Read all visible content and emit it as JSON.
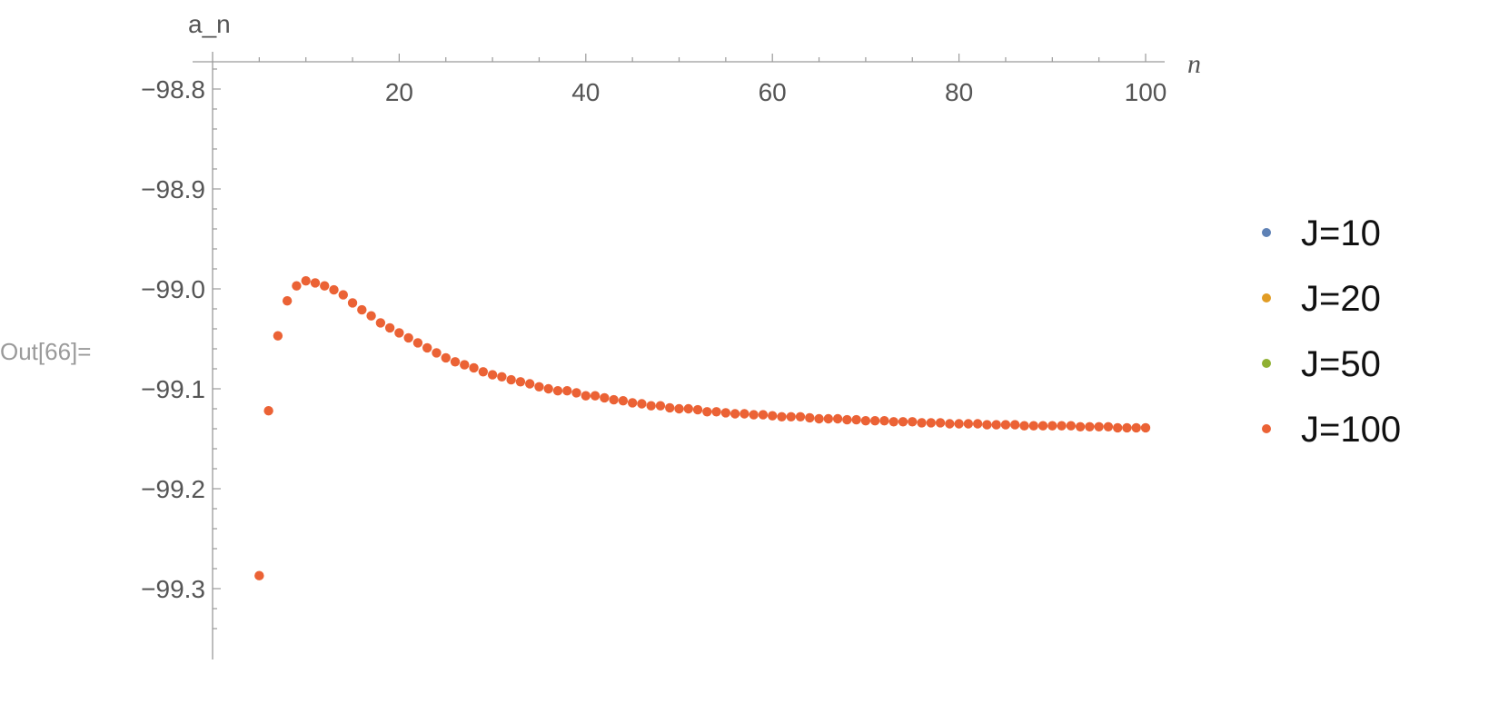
{
  "cell_label": "Out[66]=",
  "chart_data": {
    "type": "scatter",
    "xlabel": "n",
    "ylabel": "a_n",
    "xlim": [
      0,
      100
    ],
    "ylim": [
      -99.36,
      -98.77
    ],
    "x_ticks": [
      20,
      40,
      60,
      80,
      100
    ],
    "x_tick_labels": [
      "20",
      "40",
      "60",
      "80",
      "100"
    ],
    "y_ticks": [
      -98.8,
      -98.9,
      -99.0,
      -99.1,
      -99.2,
      -99.3
    ],
    "y_tick_labels": [
      "−98.8",
      "−98.9",
      "−99.0",
      "−99.1",
      "−99.2",
      "−99.3"
    ],
    "grid": false,
    "legend_position": "right",
    "series": [
      {
        "name": "J=10",
        "color": "#5e81b5",
        "x": [],
        "y": []
      },
      {
        "name": "J=20",
        "color": "#e19c24",
        "x": [],
        "y": []
      },
      {
        "name": "J=50",
        "color": "#8fb032",
        "x": [],
        "y": []
      },
      {
        "name": "J=100",
        "color": "#eb6235",
        "x": [
          5,
          6,
          7,
          8,
          9,
          10,
          11,
          12,
          13,
          14,
          15,
          16,
          17,
          18,
          19,
          20,
          21,
          22,
          23,
          24,
          25,
          26,
          27,
          28,
          29,
          30,
          31,
          32,
          33,
          34,
          35,
          36,
          37,
          38,
          39,
          40,
          41,
          42,
          43,
          44,
          45,
          46,
          47,
          48,
          49,
          50,
          51,
          52,
          53,
          54,
          55,
          56,
          57,
          58,
          59,
          60,
          61,
          62,
          63,
          64,
          65,
          66,
          67,
          68,
          69,
          70,
          71,
          72,
          73,
          74,
          75,
          76,
          77,
          78,
          79,
          80,
          81,
          82,
          83,
          84,
          85,
          86,
          87,
          88,
          89,
          90,
          91,
          92,
          93,
          94,
          95,
          96,
          97,
          98,
          99,
          100
        ],
        "y": [
          -99.287,
          -99.122,
          -99.047,
          -99.012,
          -98.997,
          -98.992,
          -98.994,
          -98.997,
          -99.001,
          -99.006,
          -99.014,
          -99.021,
          -99.027,
          -99.034,
          -99.039,
          -99.044,
          -99.049,
          -99.054,
          -99.059,
          -99.064,
          -99.069,
          -99.073,
          -99.076,
          -99.079,
          -99.083,
          -99.086,
          -99.088,
          -99.091,
          -99.093,
          -99.095,
          -99.098,
          -99.1,
          -99.102,
          -99.102,
          -99.104,
          -99.107,
          -99.107,
          -99.109,
          -99.111,
          -99.112,
          -99.114,
          -99.115,
          -99.117,
          -99.117,
          -99.119,
          -99.12,
          -99.12,
          -99.121,
          -99.123,
          -99.123,
          -99.124,
          -99.125,
          -99.125,
          -99.126,
          -99.126,
          -99.127,
          -99.128,
          -99.128,
          -99.128,
          -99.129,
          -99.13,
          -99.13,
          -99.13,
          -99.131,
          -99.131,
          -99.132,
          -99.132,
          -99.132,
          -99.133,
          -99.133,
          -99.133,
          -99.134,
          -99.134,
          -99.134,
          -99.135,
          -99.135,
          -99.135,
          -99.135,
          -99.136,
          -99.136,
          -99.136,
          -99.136,
          -99.137,
          -99.137,
          -99.137,
          -99.137,
          -99.137,
          -99.137,
          -99.138,
          -99.138,
          -99.138,
          -99.138,
          -99.139,
          -99.139,
          -99.139,
          -99.139
        ]
      }
    ]
  }
}
